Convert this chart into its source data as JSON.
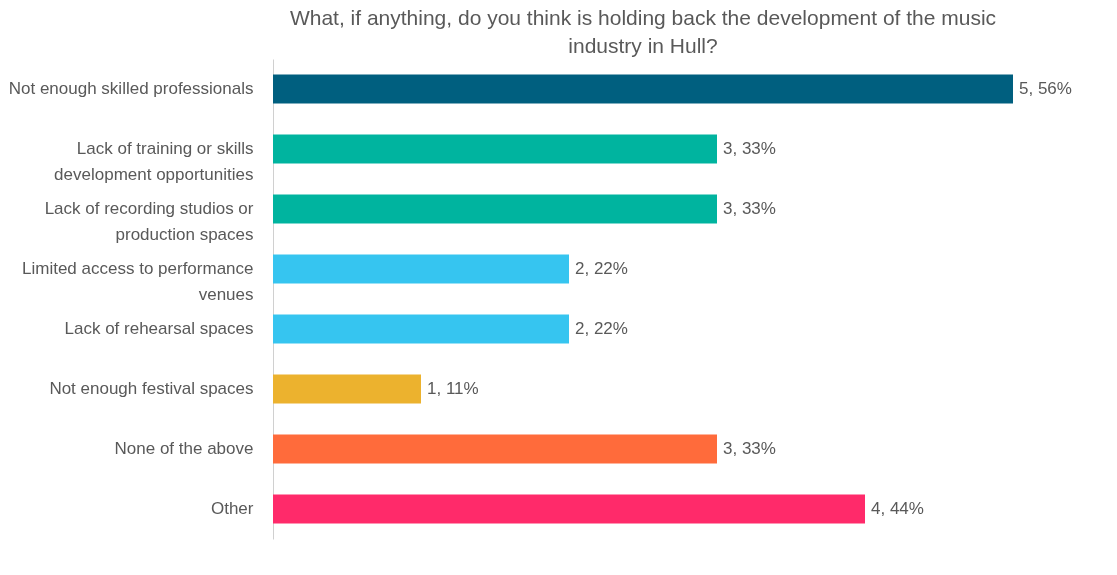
{
  "chart_data": {
    "type": "bar",
    "orientation": "horizontal",
    "title": "What, if anything, do you think is holding back the development of the music industry in Hull?",
    "categories": [
      "Not enough skilled professionals",
      "Lack of training or skills development opportunities",
      "Lack of recording studios or production spaces",
      "Limited access to performance venues",
      "Lack of rehearsal spaces",
      "Not enough festival spaces",
      "None of the above",
      "Other"
    ],
    "values": [
      5,
      3,
      3,
      2,
      2,
      1,
      3,
      4
    ],
    "colors": [
      "#005f7f",
      "#00b49f",
      "#00b49f",
      "#36c5f0",
      "#36c5f0",
      "#ecb22e",
      "#ff6b3b",
      "#ff2a6a"
    ],
    "value_labels": [
      "5, 56%",
      "3, 33%",
      "3, 33%",
      "2, 22%",
      "2, 22%",
      "1, 11%",
      "3, 33%",
      "4, 44%"
    ],
    "xlim": [
      0,
      5
    ],
    "tick_labels": "y"
  }
}
